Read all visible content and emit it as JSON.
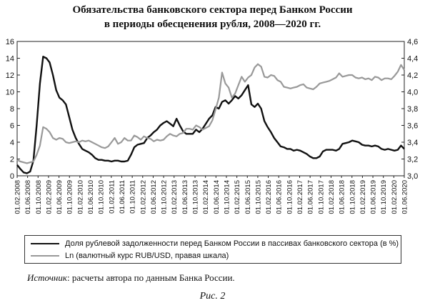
{
  "title_line1": "Обязательства банковского сектора перед Банком России",
  "title_line2": "в периоды обесценения рубля, 2008—2020 гг.",
  "source_label": "Источник",
  "source_text": ": расчеты автора по данным Банка России.",
  "figure_caption": "Рис. 2",
  "chart_data": {
    "type": "line",
    "x_tick_labels": [
      "01.02.2008",
      "01.06.2008",
      "01.10.2008",
      "01.02.2009",
      "01.06.2009",
      "01.10.2009",
      "01.02.2010",
      "01.06.2010",
      "01.10.2010",
      "01.02.2011",
      "01.06.2011",
      "01.10.2011",
      "01.02.2012",
      "01.06.2012",
      "01.10.2012",
      "01.02.2013",
      "01.06.2013",
      "01.10.2013",
      "01.02.2014",
      "01.06.2014",
      "01.10.2014",
      "01.02.2015",
      "01.06.2015",
      "01.10.2015",
      "01.02.2016",
      "01.06.2016",
      "01.10.2016",
      "01.02.2017",
      "01.06.2017",
      "01.10.2017",
      "01.02.2018",
      "01.06.2018",
      "01.10.2018",
      "01.02.2019",
      "01.06.2019",
      "01.10.2019",
      "01.02.2020",
      "01.06.2020"
    ],
    "y_left": {
      "min": 0,
      "max": 16,
      "ticks": [
        "0",
        "2",
        "4",
        "6",
        "8",
        "10",
        "12",
        "14",
        "16"
      ]
    },
    "y_right": {
      "min": 3.0,
      "max": 4.6,
      "ticks": [
        "3,0",
        "3,2",
        "3,4",
        "3,6",
        "3,8",
        "4,0",
        "4,2",
        "4,4",
        "4,6"
      ]
    },
    "grid": false,
    "legend_position": "bottom",
    "series": [
      {
        "name": "Доля рублевой задолженности перед Банком России в пассивах банковского сектора (в %)",
        "color": "#111111",
        "axis": "left",
        "values": [
          1.3,
          0.8,
          0.4,
          0.3,
          0.5,
          1.8,
          6.0,
          11.0,
          14.2,
          14.0,
          13.5,
          12.0,
          10.2,
          9.3,
          9.0,
          8.5,
          7.0,
          5.5,
          4.5,
          3.8,
          3.2,
          3.0,
          2.8,
          2.5,
          2.1,
          1.9,
          1.9,
          1.8,
          1.8,
          1.7,
          1.8,
          1.8,
          1.7,
          1.7,
          1.8,
          2.5,
          3.4,
          3.7,
          3.8,
          3.9,
          4.5,
          4.8,
          5.2,
          5.5,
          6.0,
          6.3,
          6.5,
          6.2,
          5.9,
          6.8,
          6.0,
          5.3,
          5.0,
          5.0,
          5.0,
          5.5,
          5.2,
          5.6,
          6.2,
          6.8,
          7.2,
          8.2,
          8.0,
          8.8,
          9.0,
          8.6,
          9.0,
          9.5,
          9.2,
          9.6,
          10.2,
          10.8,
          8.5,
          8.2,
          8.6,
          8.0,
          6.5,
          5.8,
          5.2,
          4.5,
          4.0,
          3.5,
          3.4,
          3.2,
          3.2,
          3.0,
          3.1,
          3.0,
          2.8,
          2.6,
          2.3,
          2.1,
          2.1,
          2.3,
          2.9,
          3.1,
          3.1,
          3.1,
          3.0,
          3.2,
          3.8,
          3.9,
          4.0,
          4.2,
          4.1,
          4.0,
          3.7,
          3.6,
          3.6,
          3.5,
          3.6,
          3.5,
          3.2,
          3.1,
          3.2,
          3.1,
          3.0,
          3.1,
          3.6,
          3.2
        ]
      },
      {
        "name": "Ln (валютный курс RUB/USD, правая шкала)",
        "color": "#999999",
        "axis": "right",
        "values": [
          3.19,
          3.17,
          3.16,
          3.15,
          3.16,
          3.17,
          3.25,
          3.36,
          3.58,
          3.56,
          3.52,
          3.45,
          3.43,
          3.45,
          3.44,
          3.4,
          3.39,
          3.4,
          3.41,
          3.4,
          3.42,
          3.41,
          3.42,
          3.4,
          3.38,
          3.36,
          3.34,
          3.33,
          3.35,
          3.4,
          3.45,
          3.38,
          3.4,
          3.45,
          3.42,
          3.42,
          3.48,
          3.46,
          3.43,
          3.47,
          3.45,
          3.44,
          3.41,
          3.43,
          3.42,
          3.43,
          3.47,
          3.5,
          3.48,
          3.47,
          3.5,
          3.51,
          3.56,
          3.56,
          3.55,
          3.6,
          3.58,
          3.55,
          3.57,
          3.59,
          3.66,
          3.79,
          3.93,
          4.23,
          4.1,
          4.05,
          3.93,
          3.98,
          4.08,
          4.18,
          4.12,
          4.17,
          4.2,
          4.29,
          4.33,
          4.3,
          4.18,
          4.17,
          4.2,
          4.19,
          4.14,
          4.12,
          4.06,
          4.05,
          4.04,
          4.05,
          4.06,
          4.08,
          4.09,
          4.05,
          4.04,
          4.03,
          4.06,
          4.1,
          4.11,
          4.12,
          4.13,
          4.15,
          4.17,
          4.22,
          4.18,
          4.19,
          4.2,
          4.2,
          4.17,
          4.16,
          4.17,
          4.15,
          4.16,
          4.14,
          4.18,
          4.17,
          4.14,
          4.16,
          4.16,
          4.15,
          4.19,
          4.24,
          4.32,
          4.26
        ]
      }
    ]
  }
}
